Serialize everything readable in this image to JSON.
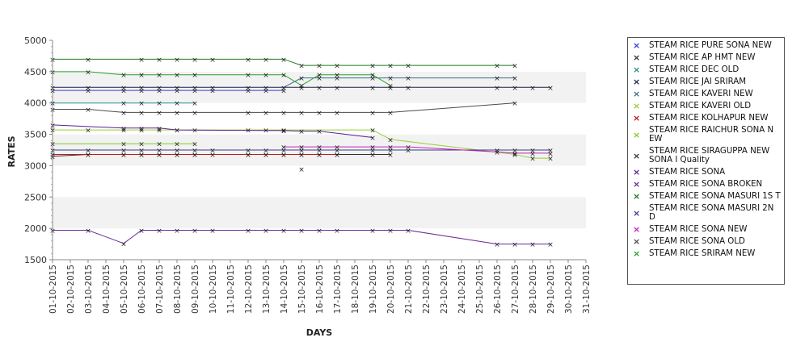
{
  "chart_data": {
    "type": "line",
    "title": "",
    "xlabel": "DAYS",
    "ylabel": "RATES",
    "ylim": [
      1500,
      5000
    ],
    "yticks": [
      "1500",
      "2000",
      "2500",
      "3000",
      "3500",
      "4000",
      "4500",
      "5000"
    ],
    "categories": [
      "01-10-2015",
      "02-10-2015",
      "03-10-2015",
      "04-10-2015",
      "05-10-2015",
      "06-10-2015",
      "07-10-2015",
      "08-10-2015",
      "09-10-2015",
      "10-10-2015",
      "11-10-2015",
      "12-10-2015",
      "13-10-2015",
      "14-10-2015",
      "15-10-2015",
      "16-10-2015",
      "17-10-2015",
      "18-10-2015",
      "19-10-2015",
      "20-10-2015",
      "21-10-2015",
      "22-10-2015",
      "23-10-2015",
      "24-10-2015",
      "25-10-2015",
      "26-10-2015",
      "27-10-2015",
      "28-10-2015",
      "29-10-2015",
      "30-10-2015",
      "31-10-2015"
    ],
    "grid": "alternating horizontal bands",
    "legend_position": "right",
    "series": [
      {
        "name": " STEAM RICE PURE SONA NEW",
        "color": "#3a3ad6",
        "points": [
          [
            "01-10-2015",
            4200
          ],
          [
            "03-10-2015",
            4200
          ],
          [
            "05-10-2015",
            4200
          ],
          [
            "06-10-2015",
            4200
          ],
          [
            "07-10-2015",
            4200
          ],
          [
            "08-10-2015",
            4200
          ],
          [
            "09-10-2015",
            4200
          ],
          [
            "10-10-2015",
            4200
          ],
          [
            "12-10-2015",
            4200
          ],
          [
            "13-10-2015",
            4200
          ],
          [
            "14-10-2015",
            4200
          ]
        ]
      },
      {
        "name": "STEAM RICE AP HMT NEW",
        "color": "#2f2f2f",
        "points": [
          [
            "01-10-2015",
            3150
          ],
          [
            "03-10-2015",
            3180
          ],
          [
            "05-10-2015",
            3180
          ],
          [
            "06-10-2015",
            3180
          ],
          [
            "07-10-2015",
            3180
          ],
          [
            "08-10-2015",
            3180
          ],
          [
            "09-10-2015",
            3180
          ],
          [
            "10-10-2015",
            3180
          ],
          [
            "12-10-2015",
            3180
          ],
          [
            "13-10-2015",
            3180
          ],
          [
            "14-10-2015",
            3180
          ],
          [
            "15-10-2015",
            3180
          ],
          [
            "16-10-2015",
            3180
          ],
          [
            "17-10-2015",
            3180
          ],
          [
            "19-10-2015",
            3180
          ],
          [
            "20-10-2015",
            3180
          ]
        ]
      },
      {
        "name": "STEAM RICE DEC OLD",
        "color": "#2a8a8a",
        "points": [
          [
            "01-10-2015",
            4000
          ],
          [
            "05-10-2015",
            4000
          ],
          [
            "06-10-2015",
            4000
          ],
          [
            "07-10-2015",
            4000
          ],
          [
            "08-10-2015",
            4000
          ],
          [
            "09-10-2015",
            4000
          ]
        ]
      },
      {
        "name": "STEAM RICE JAI SRIRAM",
        "color": "#1e1e50",
        "points": [
          [
            "01-10-2015",
            4250
          ],
          [
            "03-10-2015",
            4250
          ],
          [
            "05-10-2015",
            4250
          ],
          [
            "06-10-2015",
            4250
          ],
          [
            "07-10-2015",
            4250
          ],
          [
            "08-10-2015",
            4250
          ],
          [
            "09-10-2015",
            4250
          ],
          [
            "10-10-2015",
            4250
          ],
          [
            "12-10-2015",
            4250
          ],
          [
            "13-10-2015",
            4250
          ],
          [
            "14-10-2015",
            4250
          ],
          [
            "15-10-2015",
            4250
          ],
          [
            "16-10-2015",
            4250
          ],
          [
            "17-10-2015",
            4250
          ],
          [
            "19-10-2015",
            4250
          ],
          [
            "20-10-2015",
            4250
          ],
          [
            "21-10-2015",
            4250
          ],
          [
            "26-10-2015",
            4250
          ],
          [
            "27-10-2015",
            4250
          ],
          [
            "28-10-2015",
            4250
          ],
          [
            "29-10-2015",
            4250
          ]
        ]
      },
      {
        "name": "STEAM RICE KAVERI NEW",
        "color": "#3a6f8a",
        "points": [
          [
            "14-10-2015",
            4250
          ],
          [
            "15-10-2015",
            4400
          ],
          [
            "16-10-2015",
            4400
          ],
          [
            "17-10-2015",
            4400
          ],
          [
            "19-10-2015",
            4400
          ],
          [
            "20-10-2015",
            4400
          ],
          [
            "21-10-2015",
            4400
          ],
          [
            "26-10-2015",
            4400
          ],
          [
            "27-10-2015",
            4400
          ]
        ]
      },
      {
        "name": "STEAM RICE KAVERI OLD",
        "color": "#9acd32",
        "points": [
          [
            "01-10-2015",
            3570
          ],
          [
            "03-10-2015",
            3570
          ],
          [
            "05-10-2015",
            3570
          ],
          [
            "06-10-2015",
            3570
          ],
          [
            "07-10-2015",
            3570
          ],
          [
            "08-10-2015",
            3570
          ],
          [
            "09-10-2015",
            3570
          ],
          [
            "12-10-2015",
            3570
          ],
          [
            "13-10-2015",
            3570
          ],
          [
            "14-10-2015",
            3570
          ],
          [
            "19-10-2015",
            3570
          ],
          [
            "20-10-2015",
            3420
          ],
          [
            "27-10-2015",
            3180
          ],
          [
            "28-10-2015",
            3120
          ],
          [
            "29-10-2015",
            3120
          ]
        ]
      },
      {
        "name": "STEAM RICE KOLHAPUR NEW",
        "color": "#c01818",
        "points": [
          [
            "01-10-2015",
            3180
          ],
          [
            "03-10-2015",
            3180
          ],
          [
            "05-10-2015",
            3180
          ],
          [
            "06-10-2015",
            3180
          ],
          [
            "07-10-2015",
            3180
          ],
          [
            "08-10-2015",
            3180
          ],
          [
            "09-10-2015",
            3180
          ],
          [
            "12-10-2015",
            3180
          ],
          [
            "13-10-2015",
            3180
          ],
          [
            "14-10-2015",
            3180
          ],
          [
            "15-10-2015",
            3180
          ],
          [
            "16-10-2015",
            3180
          ],
          [
            "17-10-2015",
            3180
          ]
        ]
      },
      {
        "name": "STEAM RICE RAICHUR SONA NEW",
        "color": "#7ccd2a",
        "points": [
          [
            "01-10-2015",
            3350
          ],
          [
            "05-10-2015",
            3350
          ],
          [
            "06-10-2015",
            3350
          ],
          [
            "07-10-2015",
            3350
          ],
          [
            "08-10-2015",
            3350
          ],
          [
            "09-10-2015",
            3350
          ]
        ]
      },
      {
        "name": "STEAM RICE SIRAGUPPA NEW SONA I Quality",
        "color": "#333333",
        "points": [
          [
            "15-10-2015",
            2950
          ]
        ]
      },
      {
        "name": "STEAM RICE SONA",
        "color": "#5a1e9a",
        "points": [
          [
            "01-10-2015",
            3650
          ],
          [
            "05-10-2015",
            3600
          ],
          [
            "06-10-2015",
            3600
          ],
          [
            "07-10-2015",
            3600
          ],
          [
            "08-10-2015",
            3570
          ],
          [
            "14-10-2015",
            3560
          ],
          [
            "15-10-2015",
            3550
          ],
          [
            "16-10-2015",
            3550
          ],
          [
            "19-10-2015",
            3450
          ]
        ]
      },
      {
        "name": "STEAM RICE SONA BROKEN",
        "color": "#6a2a9a",
        "points": [
          [
            "01-10-2015",
            1970
          ],
          [
            "03-10-2015",
            1970
          ],
          [
            "05-10-2015",
            1760
          ],
          [
            "06-10-2015",
            1970
          ],
          [
            "07-10-2015",
            1970
          ],
          [
            "08-10-2015",
            1970
          ],
          [
            "09-10-2015",
            1970
          ],
          [
            "10-10-2015",
            1970
          ],
          [
            "12-10-2015",
            1970
          ],
          [
            "13-10-2015",
            1970
          ],
          [
            "14-10-2015",
            1970
          ],
          [
            "15-10-2015",
            1970
          ],
          [
            "16-10-2015",
            1970
          ],
          [
            "17-10-2015",
            1970
          ],
          [
            "19-10-2015",
            1970
          ],
          [
            "20-10-2015",
            1970
          ],
          [
            "21-10-2015",
            1970
          ],
          [
            "26-10-2015",
            1750
          ],
          [
            "27-10-2015",
            1750
          ],
          [
            "28-10-2015",
            1750
          ],
          [
            "29-10-2015",
            1750
          ]
        ]
      },
      {
        "name": "STEAM RICE SONA MASURI 1ST",
        "color": "#1f7a1f",
        "points": [
          [
            "01-10-2015",
            4700
          ],
          [
            "03-10-2015",
            4700
          ],
          [
            "06-10-2015",
            4700
          ],
          [
            "07-10-2015",
            4700
          ],
          [
            "08-10-2015",
            4700
          ],
          [
            "09-10-2015",
            4700
          ],
          [
            "10-10-2015",
            4700
          ],
          [
            "12-10-2015",
            4700
          ],
          [
            "13-10-2015",
            4700
          ],
          [
            "14-10-2015",
            4700
          ],
          [
            "15-10-2015",
            4600
          ],
          [
            "16-10-2015",
            4600
          ],
          [
            "17-10-2015",
            4600
          ],
          [
            "19-10-2015",
            4600
          ],
          [
            "20-10-2015",
            4600
          ],
          [
            "21-10-2015",
            4600
          ],
          [
            "26-10-2015",
            4600
          ],
          [
            "27-10-2015",
            4600
          ]
        ]
      },
      {
        "name": "STEAM RICE SONA MASURI 2ND",
        "color": "#3a3a8a",
        "points": [
          [
            "01-10-2015",
            3250
          ],
          [
            "03-10-2015",
            3250
          ],
          [
            "05-10-2015",
            3250
          ],
          [
            "06-10-2015",
            3250
          ],
          [
            "07-10-2015",
            3250
          ],
          [
            "08-10-2015",
            3250
          ],
          [
            "09-10-2015",
            3250
          ],
          [
            "10-10-2015",
            3250
          ],
          [
            "12-10-2015",
            3250
          ],
          [
            "13-10-2015",
            3250
          ],
          [
            "14-10-2015",
            3250
          ],
          [
            "15-10-2015",
            3250
          ],
          [
            "16-10-2015",
            3250
          ],
          [
            "17-10-2015",
            3250
          ],
          [
            "19-10-2015",
            3250
          ],
          [
            "20-10-2015",
            3250
          ],
          [
            "21-10-2015",
            3250
          ],
          [
            "26-10-2015",
            3250
          ],
          [
            "27-10-2015",
            3250
          ],
          [
            "28-10-2015",
            3250
          ],
          [
            "29-10-2015",
            3250
          ]
        ]
      },
      {
        "name": "STEAM RICE SONA NEW",
        "color": "#c020c0",
        "points": [
          [
            "14-10-2015",
            3300
          ],
          [
            "15-10-2015",
            3300
          ],
          [
            "16-10-2015",
            3300
          ],
          [
            "17-10-2015",
            3300
          ],
          [
            "19-10-2015",
            3300
          ],
          [
            "20-10-2015",
            3300
          ],
          [
            "21-10-2015",
            3300
          ],
          [
            "26-10-2015",
            3220
          ],
          [
            "27-10-2015",
            3200
          ],
          [
            "28-10-2015",
            3200
          ],
          [
            "29-10-2015",
            3200
          ]
        ]
      },
      {
        "name": "STEAM RICE SONA OLD",
        "color": "#4a4a4a",
        "points": [
          [
            "01-10-2015",
            3900
          ],
          [
            "03-10-2015",
            3900
          ],
          [
            "05-10-2015",
            3850
          ],
          [
            "06-10-2015",
            3850
          ],
          [
            "07-10-2015",
            3850
          ],
          [
            "08-10-2015",
            3850
          ],
          [
            "09-10-2015",
            3850
          ],
          [
            "12-10-2015",
            3850
          ],
          [
            "13-10-2015",
            3850
          ],
          [
            "14-10-2015",
            3850
          ],
          [
            "15-10-2015",
            3850
          ],
          [
            "16-10-2015",
            3850
          ],
          [
            "17-10-2015",
            3850
          ],
          [
            "19-10-2015",
            3850
          ],
          [
            "20-10-2015",
            3850
          ],
          [
            "27-10-2015",
            4000
          ]
        ]
      },
      {
        "name": "STEAM RICE SRIRAM NEW",
        "color": "#2aa02a",
        "points": [
          [
            "01-10-2015",
            4500
          ],
          [
            "03-10-2015",
            4500
          ],
          [
            "05-10-2015",
            4450
          ],
          [
            "06-10-2015",
            4450
          ],
          [
            "07-10-2015",
            4450
          ],
          [
            "08-10-2015",
            4450
          ],
          [
            "09-10-2015",
            4450
          ],
          [
            "12-10-2015",
            4450
          ],
          [
            "13-10-2015",
            4450
          ],
          [
            "14-10-2015",
            4450
          ],
          [
            "15-10-2015",
            4280
          ],
          [
            "16-10-2015",
            4450
          ],
          [
            "17-10-2015",
            4450
          ],
          [
            "19-10-2015",
            4450
          ],
          [
            "20-10-2015",
            4280
          ]
        ]
      }
    ]
  },
  "legend": {
    "items": [
      {
        "label": " STEAM RICE PURE SONA NEW",
        "color": "#3a3ad6"
      },
      {
        "label": "STEAM RICE AP HMT NEW",
        "color": "#2f2f2f"
      },
      {
        "label": "STEAM RICE DEC OLD",
        "color": "#2a8a8a"
      },
      {
        "label": "STEAM RICE JAI SRIRAM",
        "color": "#1e1e50"
      },
      {
        "label": "STEAM RICE KAVERI NEW",
        "color": "#3a6f8a"
      },
      {
        "label": "STEAM RICE KAVERI OLD",
        "color": "#9acd32"
      },
      {
        "label": "STEAM RICE KOLHAPUR NEW",
        "color": "#c01818"
      },
      {
        "label": "STEAM RICE RAICHUR SONA N EW",
        "color": "#7ccd2a"
      },
      {
        "label": "STEAM RICE SIRAGUPPA NEW SONA I Quality",
        "color": "#333333"
      },
      {
        "label": "STEAM RICE SONA",
        "color": "#5a1e9a"
      },
      {
        "label": "STEAM RICE SONA BROKEN",
        "color": "#6a2a9a"
      },
      {
        "label": "STEAM RICE SONA MASURI 1S T",
        "color": "#1f7a1f"
      },
      {
        "label": "STEAM RICE SONA MASURI 2N D",
        "color": "#3a3a8a"
      },
      {
        "label": "STEAM RICE SONA NEW",
        "color": "#c020c0"
      },
      {
        "label": "STEAM RICE SONA OLD",
        "color": "#4a4a4a"
      },
      {
        "label": "STEAM RICE SRIRAM NEW",
        "color": "#2aa02a"
      }
    ]
  }
}
